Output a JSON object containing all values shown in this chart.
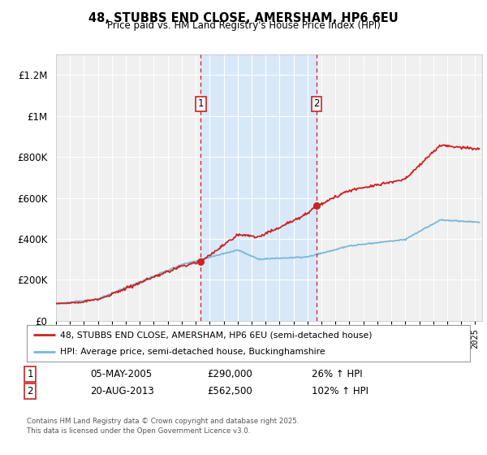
{
  "title": "48, STUBBS END CLOSE, AMERSHAM, HP6 6EU",
  "subtitle": "Price paid vs. HM Land Registry's House Price Index (HPI)",
  "ylim": [
    0,
    1300000
  ],
  "xlim_start": 1995,
  "xlim_end": 2025.5,
  "bg_color": "#ffffff",
  "plot_bg_color": "#f0f0f0",
  "grid_color": "#ffffff",
  "shade_color": "#d8e8f8",
  "transaction1_x": 2005.35,
  "transaction1_y": 290000,
  "transaction2_x": 2013.64,
  "transaction2_y": 562500,
  "transaction1_date": "05-MAY-2005",
  "transaction1_price": "£290,000",
  "transaction1_hpi": "26% ↑ HPI",
  "transaction2_date": "20-AUG-2013",
  "transaction2_price": "£562,500",
  "transaction2_hpi": "102% ↑ HPI",
  "hpi_color": "#7ab8d9",
  "price_color": "#cc2222",
  "legend1_label": "48, STUBBS END CLOSE, AMERSHAM, HP6 6EU (semi-detached house)",
  "legend2_label": "HPI: Average price, semi-detached house, Buckinghamshire",
  "footer": "Contains HM Land Registry data © Crown copyright and database right 2025.\nThis data is licensed under the Open Government Licence v3.0.",
  "yticks": [
    0,
    200000,
    400000,
    600000,
    800000,
    1000000,
    1200000
  ],
  "ytick_labels": [
    "£0",
    "£200K",
    "£400K",
    "£600K",
    "£800K",
    "£1M",
    "£1.2M"
  ]
}
